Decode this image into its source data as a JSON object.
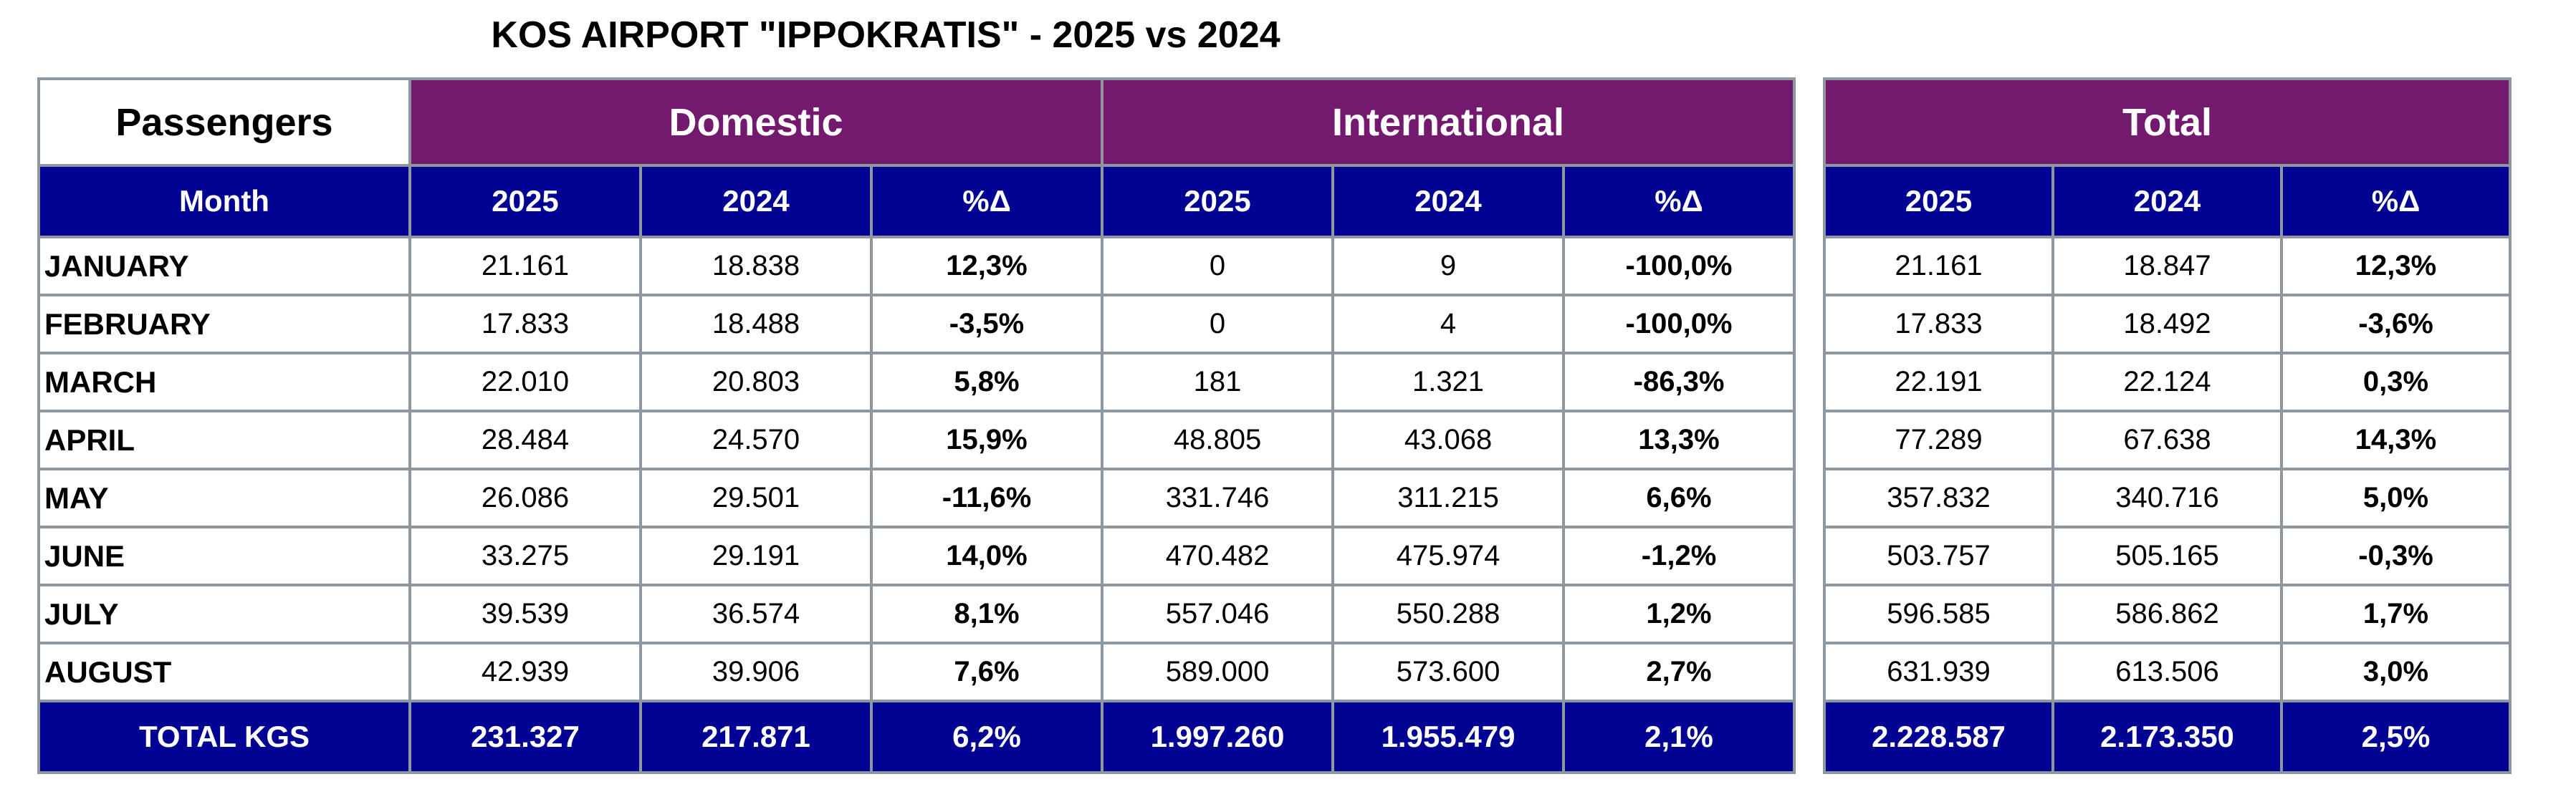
{
  "title": "KOS AIRPORT \"IPPOKRATIS\" - 2025 vs 2024",
  "headers": {
    "passengers": "Passengers",
    "domestic": "Domestic",
    "international": "International",
    "total": "Total",
    "month": "Month",
    "y2025": "2025",
    "y2024": "2024",
    "pct": "%Δ"
  },
  "rows": [
    {
      "month": "JANUARY",
      "d25": "21.161",
      "d24": "18.838",
      "dp": "12,3%",
      "i25": "0",
      "i24": "9",
      "ip": "-100,0%",
      "t25": "21.161",
      "t24": "18.847",
      "tp": "12,3%"
    },
    {
      "month": "FEBRUARY",
      "d25": "17.833",
      "d24": "18.488",
      "dp": "-3,5%",
      "i25": "0",
      "i24": "4",
      "ip": "-100,0%",
      "t25": "17.833",
      "t24": "18.492",
      "tp": "-3,6%"
    },
    {
      "month": "MARCH",
      "d25": "22.010",
      "d24": "20.803",
      "dp": "5,8%",
      "i25": "181",
      "i24": "1.321",
      "ip": "-86,3%",
      "t25": "22.191",
      "t24": "22.124",
      "tp": "0,3%"
    },
    {
      "month": "APRIL",
      "d25": "28.484",
      "d24": "24.570",
      "dp": "15,9%",
      "i25": "48.805",
      "i24": "43.068",
      "ip": "13,3%",
      "t25": "77.289",
      "t24": "67.638",
      "tp": "14,3%"
    },
    {
      "month": "MAY",
      "d25": "26.086",
      "d24": "29.501",
      "dp": "-11,6%",
      "i25": "331.746",
      "i24": "311.215",
      "ip": "6,6%",
      "t25": "357.832",
      "t24": "340.716",
      "tp": "5,0%"
    },
    {
      "month": "JUNE",
      "d25": "33.275",
      "d24": "29.191",
      "dp": "14,0%",
      "i25": "470.482",
      "i24": "475.974",
      "ip": "-1,2%",
      "t25": "503.757",
      "t24": "505.165",
      "tp": "-0,3%"
    },
    {
      "month": "JULY",
      "d25": "39.539",
      "d24": "36.574",
      "dp": "8,1%",
      "i25": "557.046",
      "i24": "550.288",
      "ip": "1,2%",
      "t25": "596.585",
      "t24": "586.862",
      "tp": "1,7%"
    },
    {
      "month": "AUGUST",
      "d25": "42.939",
      "d24": "39.906",
      "dp": "7,6%",
      "i25": "589.000",
      "i24": "573.600",
      "ip": "2,7%",
      "t25": "631.939",
      "t24": "613.506",
      "tp": "3,0%"
    }
  ],
  "total_row": {
    "label": "TOTAL KGS",
    "d25": "231.327",
    "d24": "217.871",
    "dp": "6,2%",
    "i25": "1.997.260",
    "i24": "1.955.479",
    "ip": "2,1%",
    "t25": "2.228.587",
    "t24": "2.173.350",
    "tp": "2,5%"
  },
  "colors": {
    "header_purple": "#731a6f",
    "header_navy": "#030393",
    "grid": "#8e96a0"
  }
}
